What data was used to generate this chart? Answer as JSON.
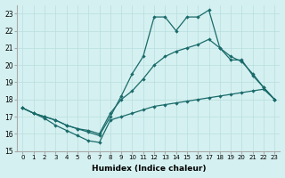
{
  "xlabel": "Humidex (Indice chaleur)",
  "background_color": "#d5f0f0",
  "grid_color": "#b8dede",
  "line_color": "#1a6b6b",
  "xlim": [
    -0.5,
    23.5
  ],
  "ylim": [
    15,
    23.5
  ],
  "yticks": [
    15,
    16,
    17,
    18,
    19,
    20,
    21,
    22,
    23
  ],
  "xticks": [
    0,
    1,
    2,
    3,
    4,
    5,
    6,
    7,
    8,
    9,
    10,
    11,
    12,
    13,
    14,
    15,
    16,
    17,
    18,
    19,
    20,
    21,
    22,
    23
  ],
  "lines": [
    [
      17.5,
      17.2,
      17.0,
      16.8,
      16.5,
      16.3,
      16.1,
      15.9,
      17.0,
      18.2,
      19.5,
      20.5,
      22.8,
      22.8,
      22.0,
      22.8,
      22.8,
      23.2,
      21.0,
      20.3,
      20.3,
      19.4,
      18.7,
      18.0
    ],
    [
      17.5,
      17.2,
      17.0,
      16.8,
      16.5,
      16.3,
      16.2,
      16.0,
      17.2,
      18.0,
      18.5,
      19.2,
      20.0,
      20.5,
      20.8,
      21.0,
      21.2,
      21.5,
      21.0,
      20.5,
      20.2,
      19.5,
      18.7,
      18.0
    ],
    [
      17.5,
      17.2,
      16.9,
      16.5,
      16.2,
      15.9,
      15.6,
      15.5,
      16.8,
      17.0,
      17.2,
      17.4,
      17.6,
      17.7,
      17.8,
      17.9,
      18.0,
      18.1,
      18.2,
      18.3,
      18.4,
      18.5,
      18.6,
      18.0
    ]
  ]
}
